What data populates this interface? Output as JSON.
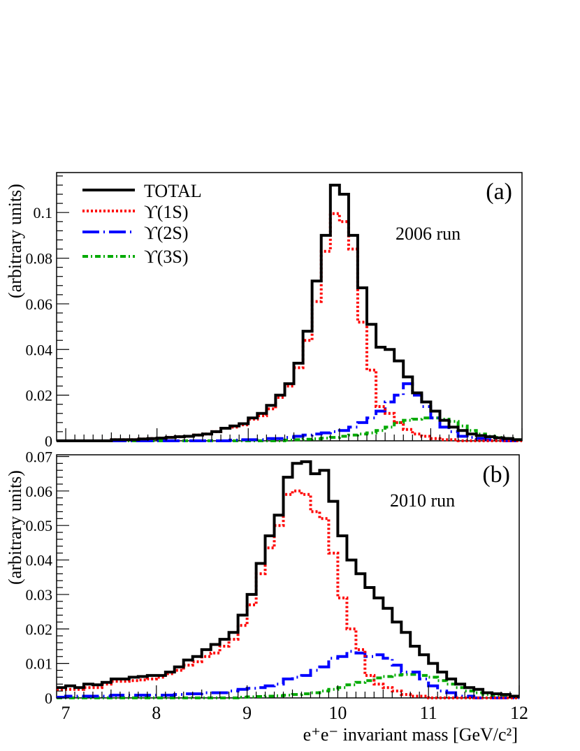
{
  "chart_data": [
    {
      "type": "line",
      "panel_label": "(a)",
      "run_label": "2006 run",
      "xlabel": "",
      "ylabel": "(arbitrary units)",
      "xlim": [
        6.9,
        12
      ],
      "ylim": [
        0,
        0.1175
      ],
      "yticks": [
        0,
        0.02,
        0.04,
        0.06,
        0.08,
        0.1
      ],
      "ytick_labels": [
        "0",
        "0.02",
        "0.04",
        "0.06",
        "0.08",
        "0.1"
      ],
      "legend": {
        "position": "top-left",
        "entries": [
          {
            "label": "TOTAL",
            "color": "#000000",
            "style": "solid"
          },
          {
            "label": "ϒ(1S)",
            "color": "#ff0000",
            "style": "dotted"
          },
          {
            "label": "ϒ(2S)",
            "color": "#0000ff",
            "style": "dashdot-long"
          },
          {
            "label": "ϒ(3S)",
            "color": "#00aa00",
            "style": "dashdot"
          }
        ]
      },
      "bin_edges_start": 6.9,
      "bin_width": 0.1,
      "series": [
        {
          "name": "TOTAL",
          "color": "#000000",
          "style": "solid",
          "values": [
            0,
            0,
            0,
            0,
            0,
            0,
            0.0005,
            0.0005,
            0.0005,
            0.0008,
            0.001,
            0.0012,
            0.0015,
            0.0018,
            0.002,
            0.0025,
            0.003,
            0.004,
            0.0055,
            0.0065,
            0.0075,
            0.01,
            0.012,
            0.0155,
            0.02,
            0.025,
            0.034,
            0.048,
            0.07,
            0.09,
            0.112,
            0.108,
            0.09,
            0.067,
            0.051,
            0.041,
            0.04,
            0.035,
            0.028,
            0.021,
            0.017,
            0.013,
            0.009,
            0.006,
            0.0045,
            0.003,
            0.0023,
            0.0018,
            0.0013,
            0.001,
            0.0005,
            0.0005
          ]
        },
        {
          "name": "ϒ(1S)",
          "color": "#ff0000",
          "style": "dotted",
          "values": [
            0,
            0,
            0,
            0,
            0,
            0,
            0.0005,
            0.0005,
            0.0005,
            0.0008,
            0.001,
            0.0012,
            0.0015,
            0.0018,
            0.002,
            0.0025,
            0.003,
            0.004,
            0.0055,
            0.006,
            0.007,
            0.0095,
            0.011,
            0.014,
            0.019,
            0.024,
            0.032,
            0.044,
            0.061,
            0.083,
            0.0995,
            0.096,
            0.084,
            0.052,
            0.031,
            0.015,
            0.012,
            0.008,
            0.005,
            0.003,
            0.002,
            0.001,
            0.0005,
            0.0005,
            0,
            0,
            0,
            0,
            0,
            0,
            0,
            0
          ]
        },
        {
          "name": "ϒ(2S)",
          "color": "#0000ff",
          "style": "dashdot-long",
          "values": [
            0,
            0,
            0,
            0,
            0,
            0,
            0,
            0,
            0,
            0,
            0,
            0,
            0,
            0,
            0,
            0,
            0,
            0,
            0,
            0.0003,
            0.0005,
            0.0005,
            0.0005,
            0.001,
            0.001,
            0.0015,
            0.002,
            0.0025,
            0.003,
            0.0035,
            0.004,
            0.0045,
            0.006,
            0.008,
            0.01,
            0.013,
            0.017,
            0.02,
            0.025,
            0.02,
            0.015,
            0.01,
            0.006,
            0.004,
            0.002,
            0.0015,
            0.001,
            0.0005,
            0.0005,
            0,
            0,
            0
          ]
        },
        {
          "name": "ϒ(3S)",
          "color": "#00aa00",
          "style": "dashdot",
          "values": [
            0,
            0,
            0,
            0,
            0,
            0,
            0,
            0,
            0,
            0,
            0,
            0,
            0,
            0,
            0,
            0,
            0,
            0,
            0,
            0,
            0,
            0,
            0,
            0,
            0,
            0.0003,
            0.0005,
            0.0007,
            0.0009,
            0.0012,
            0.0015,
            0.002,
            0.0025,
            0.003,
            0.0035,
            0.0045,
            0.006,
            0.008,
            0.009,
            0.0095,
            0.01,
            0.01,
            0.0095,
            0.0085,
            0.0065,
            0.0045,
            0.003,
            0.002,
            0.0015,
            0.001,
            0.0005,
            0.0005
          ]
        }
      ]
    },
    {
      "type": "line",
      "panel_label": "(b)",
      "run_label": "2010 run",
      "xlabel": "e⁺e⁻ invariant mass [GeV/c²]",
      "ylabel": "(arbitrary units)",
      "xlim": [
        6.9,
        12
      ],
      "ylim": [
        0,
        0.0705
      ],
      "xticks": [
        7,
        8,
        9,
        10,
        11,
        12
      ],
      "xtick_labels": [
        "7",
        "8",
        "9",
        "10",
        "11",
        "12"
      ],
      "yticks": [
        0,
        0.01,
        0.02,
        0.03,
        0.04,
        0.05,
        0.06,
        0.07
      ],
      "ytick_labels": [
        "0",
        "0.01",
        "0.02",
        "0.03",
        "0.04",
        "0.05",
        "0.06",
        "0.07"
      ],
      "bin_edges_start": 6.9,
      "bin_width": 0.1,
      "series": [
        {
          "name": "TOTAL",
          "color": "#000000",
          "style": "solid",
          "values": [
            0.003,
            0.0035,
            0.003,
            0.004,
            0.0038,
            0.0045,
            0.0055,
            0.0055,
            0.006,
            0.0062,
            0.0065,
            0.0065,
            0.0075,
            0.009,
            0.011,
            0.012,
            0.014,
            0.0155,
            0.017,
            0.019,
            0.024,
            0.03,
            0.039,
            0.047,
            0.053,
            0.064,
            0.068,
            0.0685,
            0.065,
            0.066,
            0.057,
            0.047,
            0.04,
            0.036,
            0.032,
            0.029,
            0.026,
            0.022,
            0.019,
            0.015,
            0.0125,
            0.01,
            0.0075,
            0.0055,
            0.004,
            0.003,
            0.0025,
            0.0015,
            0.0012,
            0.001,
            0.0005,
            0.0005
          ]
        },
        {
          "name": "ϒ(1S)",
          "color": "#ff0000",
          "style": "dotted",
          "values": [
            0.0025,
            0.0025,
            0.0025,
            0.003,
            0.003,
            0.004,
            0.0048,
            0.0048,
            0.005,
            0.0052,
            0.0055,
            0.006,
            0.007,
            0.008,
            0.0095,
            0.0105,
            0.012,
            0.013,
            0.015,
            0.017,
            0.021,
            0.027,
            0.036,
            0.0435,
            0.05,
            0.059,
            0.06,
            0.059,
            0.054,
            0.052,
            0.042,
            0.029,
            0.02,
            0.014,
            0.0065,
            0.004,
            0.003,
            0.002,
            0.001,
            0.0005,
            0.0005,
            0,
            0,
            0,
            0,
            0,
            0,
            0,
            0,
            0,
            0,
            0
          ]
        },
        {
          "name": "ϒ(2S)",
          "color": "#0000ff",
          "style": "dashdot-long",
          "values": [
            0.0002,
            0.0005,
            0.0005,
            0.0005,
            0.0005,
            0.0005,
            0.0008,
            0.0008,
            0.0008,
            0.0008,
            0.0008,
            0.0008,
            0.0008,
            0.001,
            0.0012,
            0.0012,
            0.0015,
            0.0015,
            0.0015,
            0.002,
            0.0025,
            0.0028,
            0.003,
            0.0035,
            0.004,
            0.0055,
            0.006,
            0.0065,
            0.008,
            0.009,
            0.0115,
            0.012,
            0.0135,
            0.013,
            0.012,
            0.0125,
            0.0115,
            0.0095,
            0.0075,
            0.0075,
            0.0055,
            0.0035,
            0.002,
            0.0015,
            0.0005,
            0.0005,
            0,
            0,
            0,
            0,
            0,
            0
          ]
        },
        {
          "name": "ϒ(3S)",
          "color": "#00aa00",
          "style": "dashdot",
          "values": [
            0,
            0,
            0,
            0,
            0,
            0,
            0,
            0,
            0,
            0,
            0,
            0,
            0,
            0,
            0,
            0,
            0,
            0,
            0,
            0,
            0.0002,
            0.0003,
            0.0004,
            0.0005,
            0.0006,
            0.0008,
            0.001,
            0.0012,
            0.0015,
            0.002,
            0.0025,
            0.003,
            0.0038,
            0.0045,
            0.005,
            0.0058,
            0.0062,
            0.0066,
            0.0068,
            0.0068,
            0.0065,
            0.006,
            0.005,
            0.004,
            0.003,
            0.002,
            0.0015,
            0.001,
            0.0005,
            0.0005,
            0.0005,
            0.0005
          ]
        }
      ]
    }
  ]
}
